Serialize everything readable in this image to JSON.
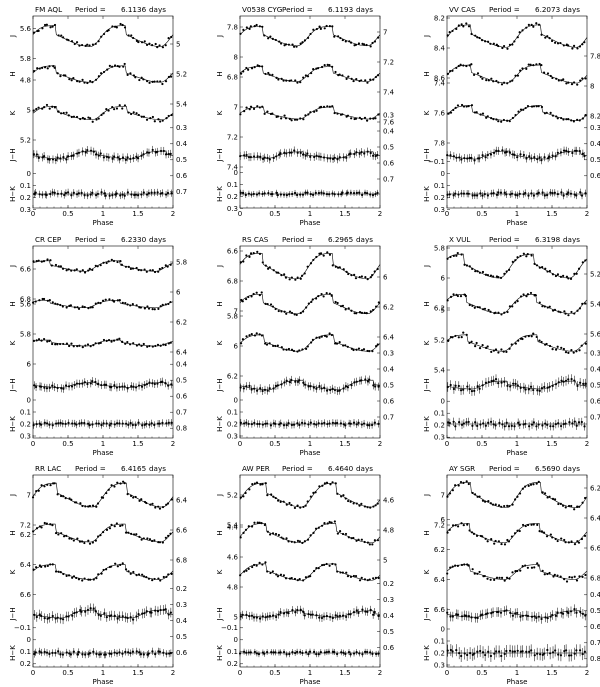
{
  "chart_data": [
    {
      "type": "scatter",
      "star": "FM AQL",
      "period_label": "Period =",
      "period": "6.1136",
      "period_unit": "days",
      "xlabel": "Phase",
      "xlim": [
        0,
        2
      ],
      "x_ticks": [
        "0",
        "0.5",
        "1",
        "1.5",
        "2"
      ],
      "series": [
        {
          "name": "J",
          "side": "left",
          "ticks": [
            "5.4",
            "5.6",
            "5.8"
          ],
          "mean": 5.65,
          "amp": 0.14,
          "shape": "hump",
          "trough": 0.82,
          "noise": 0.015
        },
        {
          "name": "H",
          "side": "right",
          "ticks": [
            "5",
            "5.2",
            "5.4"
          ],
          "mean": 5.2,
          "amp": 0.11,
          "shape": "hump",
          "trough": 0.82,
          "noise": 0.015
        },
        {
          "name": "K",
          "side": "left",
          "ticks": [
            "4.8",
            "5",
            "5.2"
          ],
          "mean": 5.02,
          "amp": 0.09,
          "shape": "hump",
          "trough": 0.84,
          "noise": 0.015
        },
        {
          "name": "J−H",
          "side": "right",
          "ticks": [
            "0.3",
            "0.4",
            "0.5",
            "0.6",
            "0.7"
          ],
          "mean": 0.47,
          "amp": 0.05,
          "shape": "hump",
          "trough": 0.4,
          "noise": 0.012,
          "errbar": 0.025
        },
        {
          "name": "H−K",
          "side": "left",
          "ticks": [
            "0",
            "0.1",
            "0.2",
            "0.3",
            "0.4"
          ],
          "mean": 0.17,
          "amp": 0.0,
          "shape": "flat",
          "trough": 0.5,
          "noise": 0.015,
          "errbar": 0.03
        }
      ]
    },
    {
      "type": "scatter",
      "star": "V0538 CYG",
      "period_label": "Period =",
      "period": "6.1193",
      "period_unit": "days",
      "xlabel": "Phase",
      "xlim": [
        0,
        2
      ],
      "x_ticks": [
        "0",
        "0.5",
        "1",
        "1.5",
        "2"
      ],
      "series": [
        {
          "name": "J",
          "side": "left",
          "ticks": [
            "7.6",
            "7.8",
            "8"
          ],
          "mean": 7.86,
          "amp": 0.13,
          "shape": "hump",
          "trough": 0.82,
          "noise": 0.012
        },
        {
          "name": "H",
          "side": "right",
          "ticks": [
            "7",
            "7.2",
            "7.4",
            "7.6"
          ],
          "mean": 7.28,
          "amp": 0.1,
          "shape": "hump",
          "trough": 0.82,
          "noise": 0.012
        },
        {
          "name": "K",
          "side": "left",
          "ticks": [
            "6.8",
            "7",
            "7.2",
            "7.4"
          ],
          "mean": 7.04,
          "amp": 0.08,
          "shape": "hump",
          "trough": 0.84,
          "noise": 0.012
        },
        {
          "name": "J−H",
          "side": "right",
          "ticks": [
            "0.3",
            "0.4",
            "0.5",
            "0.6",
            "0.7"
          ],
          "mean": 0.55,
          "amp": 0.04,
          "shape": "hump",
          "trough": 0.4,
          "noise": 0.01,
          "errbar": 0.025
        },
        {
          "name": "H−K",
          "side": "left",
          "ticks": [
            "0",
            "0.1",
            "0.2",
            "0.3",
            "0.4"
          ],
          "mean": 0.18,
          "amp": 0.0,
          "shape": "flat",
          "trough": 0.5,
          "noise": 0.012,
          "errbar": 0.025
        }
      ]
    },
    {
      "type": "scatter",
      "star": "VV CAS",
      "period_label": "Period =",
      "period": "6.2073",
      "period_unit": "days",
      "xlabel": "Phase",
      "xlim": [
        0,
        2
      ],
      "x_ticks": [
        "0",
        "0.5",
        "1",
        "1.5",
        "2"
      ],
      "series": [
        {
          "name": "J",
          "side": "left",
          "ticks": [
            "8.2",
            "8.4",
            "8.6"
          ],
          "mean": 8.32,
          "amp": 0.15,
          "shape": "hump",
          "trough": 0.85,
          "noise": 0.012
        },
        {
          "name": "H",
          "side": "right",
          "ticks": [
            "7.8",
            "8",
            "8.2"
          ],
          "mean": 7.92,
          "amp": 0.12,
          "shape": "hump",
          "trough": 0.85,
          "noise": 0.012
        },
        {
          "name": "K",
          "side": "left",
          "ticks": [
            "7.4",
            "7.6",
            "7.8"
          ],
          "mean": 7.6,
          "amp": 0.1,
          "shape": "hump",
          "trough": 0.86,
          "noise": 0.012
        },
        {
          "name": "J−H",
          "side": "right",
          "ticks": [
            "0.3",
            "0.4",
            "0.5",
            "0.6"
          ],
          "mean": 0.47,
          "amp": 0.05,
          "shape": "hump",
          "trough": 0.4,
          "noise": 0.012,
          "errbar": 0.025
        },
        {
          "name": "H−K",
          "side": "left",
          "ticks": [
            "−0.1",
            "0",
            "0.1",
            "0.2",
            "0.3"
          ],
          "mean": 0.17,
          "amp": 0.0,
          "shape": "flat",
          "trough": 0.5,
          "noise": 0.015,
          "errbar": 0.03
        }
      ]
    },
    {
      "type": "scatter",
      "star": "CR CEP",
      "period_label": "Period =",
      "period": "6.2330",
      "period_unit": "days",
      "xlabel": "Phase",
      "xlim": [
        0,
        2
      ],
      "x_ticks": [
        "0",
        "0.5",
        "1",
        "1.5",
        "2"
      ],
      "series": [
        {
          "name": "J",
          "side": "left",
          "ticks": [
            "6.4",
            "6.6",
            "6.8"
          ],
          "mean": 6.58,
          "amp": 0.07,
          "shape": "hump",
          "trough": 0.75,
          "noise": 0.01
        },
        {
          "name": "H",
          "side": "right",
          "ticks": [
            "5.8",
            "6",
            "6.2",
            "6.4"
          ],
          "mean": 6.08,
          "amp": 0.05,
          "shape": "hump",
          "trough": 0.75,
          "noise": 0.01
        },
        {
          "name": "K",
          "side": "left",
          "ticks": [
            "5.6",
            "5.8",
            "6"
          ],
          "mean": 5.86,
          "amp": 0.04,
          "shape": "hump",
          "trough": 0.76,
          "noise": 0.01
        },
        {
          "name": "J−H",
          "side": "right",
          "ticks": [
            "0.4",
            "0.5",
            "0.6",
            "0.7",
            "0.8"
          ],
          "mean": 0.53,
          "amp": 0.03,
          "shape": "hump",
          "trough": 0.4,
          "noise": 0.01,
          "errbar": 0.025
        },
        {
          "name": "H−K",
          "side": "left",
          "ticks": [
            "0",
            "0.1",
            "0.2",
            "0.3",
            "0.4"
          ],
          "mean": 0.2,
          "amp": 0.0,
          "shape": "flat",
          "trough": 0.5,
          "noise": 0.012,
          "errbar": 0.03
        }
      ]
    },
    {
      "type": "scatter",
      "star": "RS CAS",
      "period_label": "Period =",
      "period": "6.2965",
      "period_unit": "days",
      "xlabel": "Phase",
      "xlim": [
        0,
        2
      ],
      "x_ticks": [
        "0",
        "0.5",
        "1",
        "1.5",
        "2"
      ],
      "series": [
        {
          "name": "J",
          "side": "left",
          "ticks": [
            "6.4",
            "6.6",
            "6.8",
            "7"
          ],
          "mean": 6.7,
          "amp": 0.17,
          "shape": "hump",
          "trough": 0.82,
          "noise": 0.012
        },
        {
          "name": "H",
          "side": "right",
          "ticks": [
            "6",
            "6.2",
            "6.4"
          ],
          "mean": 6.18,
          "amp": 0.13,
          "shape": "hump",
          "trough": 0.82,
          "noise": 0.012
        },
        {
          "name": "K",
          "side": "left",
          "ticks": [
            "5.8",
            "6",
            "6.2"
          ],
          "mean": 5.98,
          "amp": 0.11,
          "shape": "hump",
          "trough": 0.84,
          "noise": 0.012
        },
        {
          "name": "J−H",
          "side": "right",
          "ticks": [
            "0.3",
            "0.4",
            "0.5",
            "0.6",
            "0.7"
          ],
          "mean": 0.5,
          "amp": 0.06,
          "shape": "hump",
          "trough": 0.4,
          "noise": 0.012,
          "errbar": 0.025
        },
        {
          "name": "H−K",
          "side": "left",
          "ticks": [
            "0",
            "0.1",
            "0.2",
            "0.3",
            "0.4"
          ],
          "mean": 0.2,
          "amp": 0.0,
          "shape": "flat",
          "trough": 0.5,
          "noise": 0.012,
          "errbar": 0.03
        }
      ]
    },
    {
      "type": "scatter",
      "star": "X VUL",
      "period_label": "Period =",
      "period": "6.3198",
      "period_unit": "days",
      "xlabel": "Phase",
      "xlim": [
        0,
        2
      ],
      "x_ticks": [
        "0",
        "0.5",
        "1",
        "1.5",
        "2"
      ],
      "series": [
        {
          "name": "J",
          "side": "left",
          "ticks": [
            "5.6",
            "5.8",
            "6",
            "6.2"
          ],
          "mean": 5.92,
          "amp": 0.16,
          "shape": "hump",
          "trough": 0.75,
          "noise": 0.012
        },
        {
          "name": "H",
          "side": "right",
          "ticks": [
            "5.2",
            "5.4",
            "5.6"
          ],
          "mean": 5.4,
          "amp": 0.13,
          "shape": "hump",
          "trough": 0.78,
          "noise": 0.012
        },
        {
          "name": "K",
          "side": "left",
          "ticks": [
            "5",
            "5.2",
            "5.4"
          ],
          "mean": 5.22,
          "amp": 0.11,
          "shape": "hump",
          "trough": 0.8,
          "noise": 0.015
        },
        {
          "name": "J−H",
          "side": "right",
          "ticks": [
            "0.3",
            "0.4",
            "0.5",
            "0.6",
            "0.7"
          ],
          "mean": 0.5,
          "amp": 0.05,
          "shape": "hump",
          "trough": 0.35,
          "noise": 0.015,
          "errbar": 0.03
        },
        {
          "name": "H−K",
          "side": "left",
          "ticks": [
            "0",
            "0.1",
            "0.2",
            "0.3",
            "0.4"
          ],
          "mean": 0.19,
          "amp": 0.0,
          "shape": "flat",
          "trough": 0.5,
          "noise": 0.02,
          "errbar": 0.035
        }
      ]
    },
    {
      "type": "scatter",
      "star": "RR LAC",
      "period_label": "Period =",
      "period": "6.4165",
      "period_unit": "days",
      "xlabel": "Phase",
      "xlim": [
        0,
        2
      ],
      "x_ticks": [
        "0",
        "0.5",
        "1",
        "1.5",
        "2"
      ],
      "series": [
        {
          "name": "J",
          "side": "left",
          "ticks": [
            "6.8",
            "7",
            "7.2"
          ],
          "mean": 7.0,
          "amp": 0.16,
          "shape": "hump",
          "trough": 0.85,
          "noise": 0.012
        },
        {
          "name": "H",
          "side": "right",
          "ticks": [
            "6.4",
            "6.6",
            "6.8"
          ],
          "mean": 6.62,
          "amp": 0.12,
          "shape": "hump",
          "trough": 0.82,
          "noise": 0.012
        },
        {
          "name": "K",
          "side": "left",
          "ticks": [
            "6.2",
            "6.4",
            "6.6"
          ],
          "mean": 6.45,
          "amp": 0.1,
          "shape": "hump",
          "trough": 0.82,
          "noise": 0.012
        },
        {
          "name": "J−H",
          "side": "right",
          "ticks": [
            "0.2",
            "0.3",
            "0.4",
            "0.5",
            "0.6"
          ],
          "mean": 0.36,
          "amp": 0.05,
          "shape": "hump",
          "trough": 0.4,
          "noise": 0.012,
          "errbar": 0.03
        },
        {
          "name": "H−K",
          "side": "left",
          "ticks": [
            "−0.1",
            "0",
            "0.1",
            "0.2"
          ],
          "mean": 0.11,
          "amp": 0.0,
          "shape": "flat",
          "trough": 0.5,
          "noise": 0.015,
          "errbar": 0.03
        }
      ]
    },
    {
      "type": "scatter",
      "star": "AW PER",
      "period_label": "Period =",
      "period": "6.4640",
      "period_unit": "days",
      "xlabel": "Phase",
      "xlim": [
        0,
        2
      ],
      "x_ticks": [
        "0",
        "0.5",
        "1",
        "1.5",
        "2"
      ],
      "series": [
        {
          "name": "J",
          "side": "left",
          "ticks": [
            "5",
            "5.2",
            "5.4"
          ],
          "mean": 5.2,
          "amp": 0.16,
          "shape": "hump",
          "trough": 0.88,
          "noise": 0.012
        },
        {
          "name": "H",
          "side": "right",
          "ticks": [
            "4.6",
            "4.8",
            "5"
          ],
          "mean": 4.82,
          "amp": 0.13,
          "shape": "hump",
          "trough": 0.88,
          "noise": 0.012
        },
        {
          "name": "K",
          "side": "left",
          "ticks": [
            "4.4",
            "4.6",
            "4.8",
            "5"
          ],
          "mean": 4.7,
          "amp": 0.11,
          "shape": "hump",
          "trough": 0.88,
          "noise": 0.012
        },
        {
          "name": "J−H",
          "side": "right",
          "ticks": [
            "0.2",
            "0.3",
            "0.4",
            "0.5",
            "0.6"
          ],
          "mean": 0.39,
          "amp": 0.04,
          "shape": "hump",
          "trough": 0.4,
          "noise": 0.012,
          "errbar": 0.025
        },
        {
          "name": "H−K",
          "side": "left",
          "ticks": [
            "−0.1",
            "0",
            "0.1",
            "0.2"
          ],
          "mean": 0.11,
          "amp": 0.0,
          "shape": "flat",
          "trough": 0.5,
          "noise": 0.012,
          "errbar": 0.025
        }
      ]
    },
    {
      "type": "scatter",
      "star": "AY SGR",
      "period_label": "Period =",
      "period": "6.5690",
      "period_unit": "days",
      "xlabel": "Phase",
      "xlim": [
        0,
        2
      ],
      "x_ticks": [
        "0",
        "0.5",
        "1",
        "1.5",
        "2"
      ],
      "series": [
        {
          "name": "J",
          "side": "left",
          "ticks": [
            "6.8",
            "7",
            "7.2"
          ],
          "mean": 7.0,
          "amp": 0.17,
          "shape": "hump",
          "trough": 0.85,
          "noise": 0.012
        },
        {
          "name": "H",
          "side": "right",
          "ticks": [
            "6.2",
            "6.4",
            "6.6",
            "6.8"
          ],
          "mean": 6.5,
          "amp": 0.13,
          "shape": "hump",
          "trough": 0.82,
          "noise": 0.015
        },
        {
          "name": "K",
          "side": "left",
          "ticks": [
            "6",
            "6.2",
            "6.4",
            "6.6"
          ],
          "mean": 6.35,
          "amp": 0.1,
          "shape": "hump",
          "trough": 0.82,
          "noise": 0.02
        },
        {
          "name": "J−H",
          "side": "right",
          "ticks": [
            "0.4",
            "0.5",
            "0.6",
            "0.7",
            "0.8"
          ],
          "mean": 0.52,
          "amp": 0.04,
          "shape": "hump",
          "trough": 0.4,
          "noise": 0.012,
          "errbar": 0.03
        },
        {
          "name": "H−K",
          "side": "left",
          "ticks": [
            "0",
            "0.1",
            "0.2",
            "0.3",
            "0.4"
          ],
          "mean": 0.2,
          "amp": 0.0,
          "shape": "flat",
          "trough": 0.5,
          "noise": 0.025,
          "errbar": 0.05
        }
      ]
    }
  ]
}
